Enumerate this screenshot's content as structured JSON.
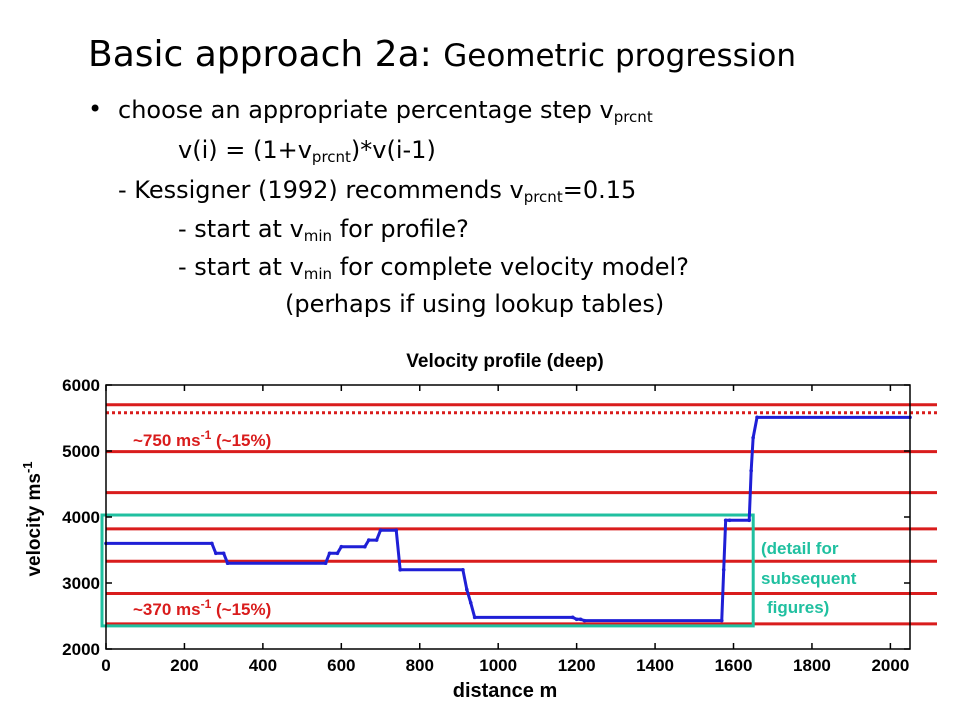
{
  "slide": {
    "title_main": "Basic approach 2a:",
    "title_sub": "Geometric progression",
    "bullet": "•",
    "lines": {
      "l1_pre": "choose an appropriate percentage step v",
      "l1_sub": "prcnt",
      "l2_pre": "v(i) = (1+v",
      "l2_sub": "prcnt",
      "l2_post": ")*v(i-1)",
      "l3_pre": "- Kessigner (1992) recommends v",
      "l3_sub": "prcnt",
      "l3_post": "=0.15",
      "l4_pre": "- start at v",
      "l4_sub": "min",
      "l4_post": " for profile?",
      "l5_pre": "- start at v",
      "l5_sub": "min",
      "l5_post": " for complete velocity model?",
      "l6": "(perhaps if using lookup tables)"
    }
  },
  "chart_data": {
    "type": "line",
    "title": "Velocity profile (deep)",
    "xlabel": "distance m",
    "ylabel_main": "velocity ms",
    "ylabel_sup": "-1",
    "xlim": [
      0,
      2050
    ],
    "ylim": [
      2000,
      6000
    ],
    "xticks": [
      0,
      200,
      400,
      600,
      800,
      1000,
      1200,
      1400,
      1600,
      1800,
      2000
    ],
    "yticks": [
      2000,
      3000,
      4000,
      5000,
      6000
    ],
    "grid": false,
    "colors": {
      "profile": "#1f1fd6",
      "levels": "#d91c1c",
      "detail_box": "#20c0a0",
      "text_red": "#d91c1c",
      "text_teal": "#20c0a0"
    },
    "series": [
      {
        "x": [
          0,
          270,
          280,
          300,
          310,
          560,
          570,
          590,
          600,
          660,
          670,
          690,
          700,
          740,
          750,
          910,
          920,
          930,
          940,
          1190,
          1200,
          1210,
          1220,
          1570,
          1575,
          1580,
          1590,
          1640,
          1645,
          1650,
          1660,
          2050
        ],
        "y": [
          3600,
          3600,
          3450,
          3450,
          3300,
          3300,
          3450,
          3450,
          3550,
          3550,
          3650,
          3650,
          3800,
          3800,
          3200,
          3200,
          2900,
          2700,
          2480,
          2480,
          2450,
          2450,
          2430,
          2430,
          3200,
          3950,
          3950,
          3950,
          4700,
          5200,
          5510,
          5510
        ]
      }
    ],
    "levels": [
      2380,
      2840,
      3330,
      3820,
      4370,
      4990,
      5580,
      5700
    ],
    "dotted_level": 5580,
    "detail_box": {
      "x": [
        0,
        1640
      ],
      "y": [
        2350,
        4030
      ]
    },
    "annotations": {
      "upper_pre": "~750 ms",
      "upper_sup": "-1",
      "upper_post": " (~15%)",
      "lower_pre": "~370 ms",
      "lower_sup": "-1",
      "lower_post": " (~15%)",
      "detail_1": "(detail for",
      "detail_2": "subsequent",
      "detail_3": "figures)"
    }
  }
}
